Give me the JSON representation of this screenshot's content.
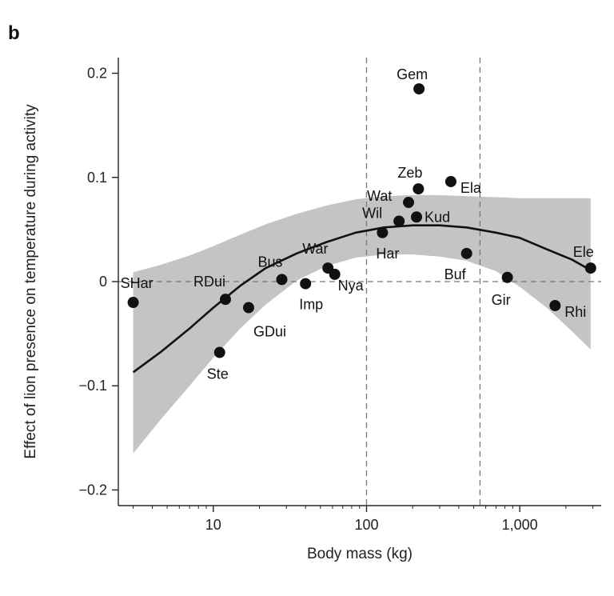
{
  "panel_label": "b",
  "chart_data": {
    "type": "scatter",
    "xscale": "log",
    "xlabel": "Body mass (kg)",
    "ylabel": "Effect of lion presence on temperature during activity",
    "xlim": [
      2.4,
      3400
    ],
    "ylim": [
      -0.215,
      0.215
    ],
    "xticks": [
      {
        "v": 10,
        "label": "10"
      },
      {
        "v": 100,
        "label": "100"
      },
      {
        "v": 1000,
        "label": "1,000"
      }
    ],
    "yticks": [
      {
        "v": 0.2,
        "label": "0.2"
      },
      {
        "v": 0.1,
        "label": "0.1"
      },
      {
        "v": 0,
        "label": "0"
      },
      {
        "v": -0.1,
        "label": "−0.1"
      },
      {
        "v": -0.2,
        "label": "−0.2"
      }
    ],
    "vlines": [
      100,
      550
    ],
    "hline": 0,
    "points": [
      {
        "label": "SHar",
        "x": 3,
        "y": -0.02
      },
      {
        "label": "RDui",
        "x": 12,
        "y": -0.017
      },
      {
        "label": "GDui",
        "x": 17,
        "y": -0.025
      },
      {
        "label": "Ste",
        "x": 11,
        "y": -0.068
      },
      {
        "label": "Bus",
        "x": 28,
        "y": 0.002
      },
      {
        "label": "Imp",
        "x": 40,
        "y": -0.002
      },
      {
        "label": "War",
        "x": 56,
        "y": 0.013
      },
      {
        "label": "Nya",
        "x": 62,
        "y": 0.007
      },
      {
        "label": "Har",
        "x": 127,
        "y": 0.047
      },
      {
        "label": "Wil",
        "x": 163,
        "y": 0.058
      },
      {
        "label": "Wat",
        "x": 188,
        "y": 0.076
      },
      {
        "label": "Kud",
        "x": 212,
        "y": 0.062
      },
      {
        "label": "Zeb",
        "x": 218,
        "y": 0.089
      },
      {
        "label": "Gem",
        "x": 220,
        "y": 0.185
      },
      {
        "label": "Ela",
        "x": 355,
        "y": 0.096
      },
      {
        "label": "Buf",
        "x": 450,
        "y": 0.027
      },
      {
        "label": "Gir",
        "x": 830,
        "y": 0.004
      },
      {
        "label": "Rhi",
        "x": 1700,
        "y": -0.023
      },
      {
        "label": "Ele",
        "x": 2900,
        "y": 0.013
      }
    ],
    "fit_line": {
      "x": [
        3,
        4.5,
        7,
        10,
        15,
        22,
        35,
        55,
        85,
        130,
        200,
        300,
        450,
        700,
        1000,
        1500,
        2200,
        2900
      ],
      "y": [
        -0.087,
        -0.068,
        -0.045,
        -0.025,
        -0.004,
        0.013,
        0.027,
        0.038,
        0.047,
        0.052,
        0.054,
        0.054,
        0.052,
        0.047,
        0.042,
        0.031,
        0.021,
        0.011
      ]
    },
    "confidence_band": {
      "x": [
        3,
        4.5,
        7,
        10,
        15,
        22,
        35,
        55,
        85,
        130,
        200,
        300,
        450,
        700,
        1000,
        1500,
        2200,
        2900
      ],
      "upper": [
        0.009,
        0.016,
        0.025,
        0.034,
        0.045,
        0.055,
        0.065,
        0.073,
        0.079,
        0.082,
        0.083,
        0.083,
        0.082,
        0.081,
        0.08,
        0.08,
        0.08,
        0.08
      ],
      "lower": [
        -0.165,
        -0.133,
        -0.1,
        -0.073,
        -0.045,
        -0.022,
        0.001,
        0.015,
        0.023,
        0.026,
        0.026,
        0.024,
        0.02,
        0.01,
        -0.005,
        -0.025,
        -0.048,
        -0.065
      ]
    }
  }
}
